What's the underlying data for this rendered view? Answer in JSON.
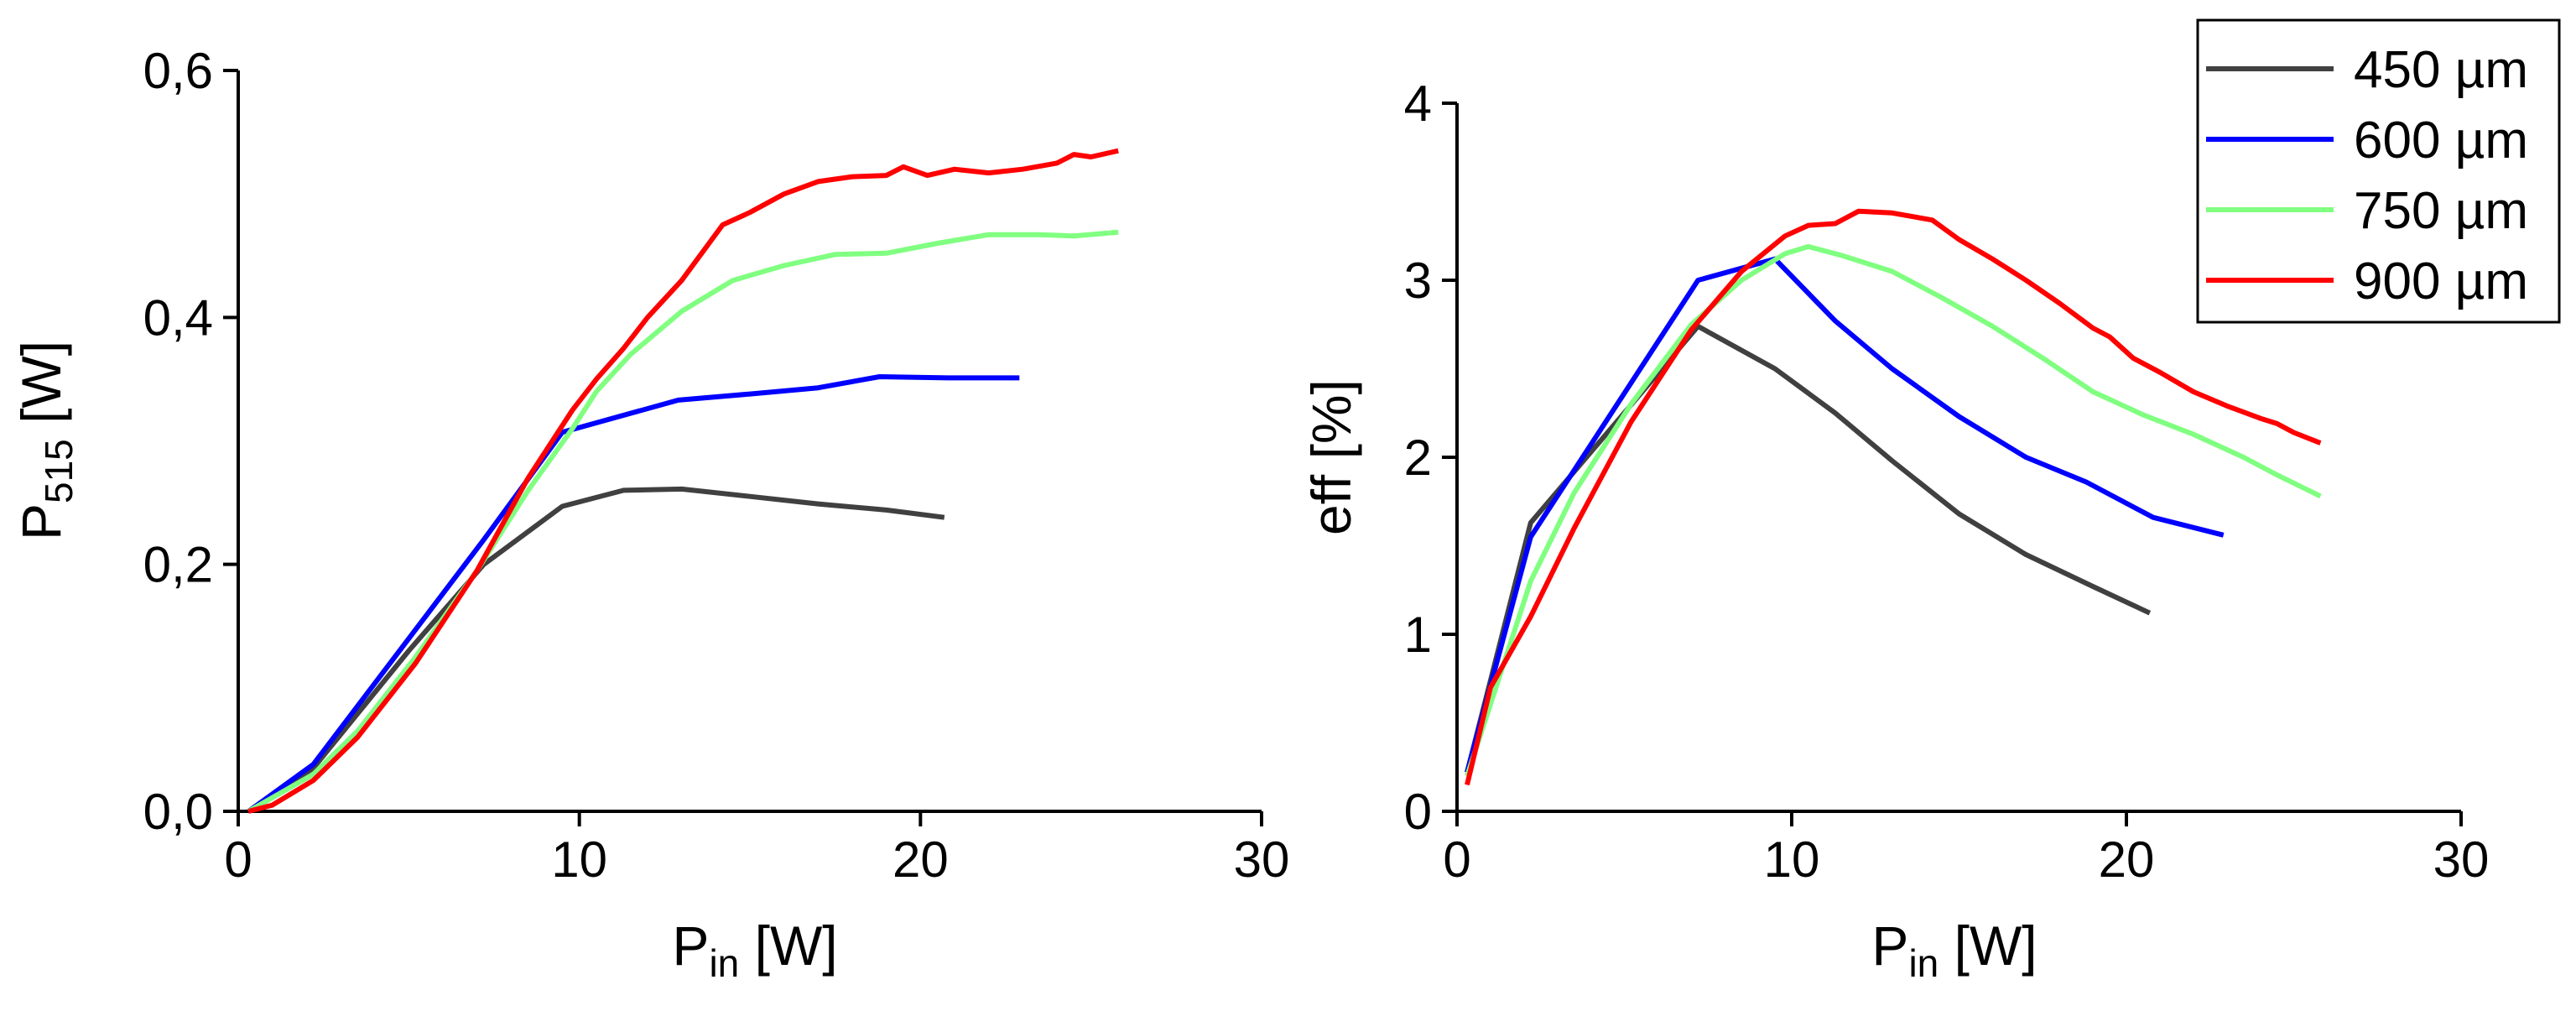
{
  "chart_data": [
    {
      "type": "line",
      "xlabel": [
        "P",
        "in",
        " [W]"
      ],
      "ylabel": [
        "P",
        "515",
        " [W]"
      ],
      "xlim": [
        0,
        30
      ],
      "xticks": [
        0,
        10,
        20,
        30
      ],
      "ylim": [
        0,
        0.6
      ],
      "yticks": [
        {
          "value": 0,
          "label": "0,0"
        },
        {
          "value": 0.2,
          "label": "0,2"
        },
        {
          "value": 0.4,
          "label": "0,4"
        },
        {
          "value": 0.6,
          "label": "0,6"
        }
      ],
      "series": [
        {
          "color": "#404040",
          "x": [
            0.3,
            2.2,
            5,
            7.2,
            9.5,
            11.3,
            13,
            15,
            17,
            19,
            20.7
          ],
          "values": [
            0,
            0.035,
            0.13,
            0.2,
            0.247,
            0.26,
            0.261,
            0.255,
            0.249,
            0.244,
            0.238
          ]
        },
        {
          "color": "#0000ff",
          "x": [
            0.3,
            2.2,
            7.2,
            9.5,
            12.9,
            15,
            17,
            18.8,
            20.8,
            22.9
          ],
          "values": [
            0,
            0.038,
            0.22,
            0.307,
            0.333,
            0.338,
            0.343,
            0.352,
            0.351,
            0.351
          ]
        },
        {
          "color": "#80ff80",
          "x": [
            0.3,
            2.2,
            3.5,
            5.2,
            7,
            8.5,
            9.8,
            10.5,
            11.5,
            13,
            14.5,
            16,
            17.5,
            19,
            20.5,
            22,
            23.5,
            24.5,
            25.8
          ],
          "values": [
            0,
            0.03,
            0.065,
            0.125,
            0.195,
            0.26,
            0.31,
            0.34,
            0.37,
            0.405,
            0.43,
            0.442,
            0.451,
            0.452,
            0.46,
            0.467,
            0.467,
            0.466,
            0.469
          ]
        },
        {
          "color": "#ff0000",
          "x": [
            0.3,
            1,
            2.2,
            3.5,
            5.2,
            7,
            8.5,
            9.8,
            10.5,
            11.3,
            12,
            13,
            14.2,
            15,
            16,
            17,
            18,
            19,
            19.5,
            20.2,
            21,
            22,
            23,
            24,
            24.5,
            25,
            25.8
          ],
          "values": [
            0,
            0.005,
            0.025,
            0.06,
            0.12,
            0.195,
            0.27,
            0.325,
            0.35,
            0.375,
            0.4,
            0.43,
            0.475,
            0.485,
            0.5,
            0.51,
            0.514,
            0.515,
            0.522,
            0.515,
            0.52,
            0.517,
            0.52,
            0.525,
            0.532,
            0.53,
            0.535
          ]
        }
      ]
    },
    {
      "type": "line",
      "xlabel": [
        "P",
        "in",
        " [W]"
      ],
      "ylabel": [
        "eff [%]"
      ],
      "xlim": [
        0,
        30
      ],
      "xticks": [
        0,
        10,
        20,
        30
      ],
      "ylim": [
        0,
        4
      ],
      "yticks": [
        0,
        1,
        2,
        3,
        4
      ],
      "legend": "upper right",
      "series": [
        {
          "name": "450 µm",
          "color": "#404040",
          "x": [
            0.3,
            2.2,
            7.2,
            9.5,
            11.3,
            13,
            15,
            17,
            19,
            20.7
          ],
          "values": [
            0.22,
            1.63,
            2.74,
            2.5,
            2.25,
            1.98,
            1.68,
            1.45,
            1.27,
            1.12
          ]
        },
        {
          "name": "600 µm",
          "color": "#0000ff",
          "x": [
            0.3,
            2.2,
            7.2,
            9.5,
            11.3,
            13,
            15,
            17,
            18.8,
            20.8,
            22.9
          ],
          "values": [
            0.22,
            1.55,
            3.0,
            3.12,
            2.77,
            2.5,
            2.23,
            2.0,
            1.86,
            1.66,
            1.56
          ]
        },
        {
          "name": "750 µm",
          "color": "#80ff80",
          "x": [
            0.3,
            2.2,
            3.5,
            5.2,
            7,
            8.5,
            9.8,
            10.5,
            11.5,
            13,
            14.5,
            16,
            17.5,
            19,
            20.5,
            22,
            23.5,
            24.5,
            25.8
          ],
          "values": [
            0.2,
            1.3,
            1.8,
            2.3,
            2.75,
            3.0,
            3.15,
            3.19,
            3.14,
            3.05,
            2.9,
            2.74,
            2.56,
            2.37,
            2.24,
            2.13,
            2.0,
            1.9,
            1.78
          ]
        },
        {
          "name": "900 µm",
          "color": "#ff0000",
          "x": [
            0.3,
            1,
            2.2,
            3.5,
            5.2,
            7,
            8.5,
            9.8,
            10.5,
            11.3,
            12,
            13,
            14.2,
            15,
            16,
            17,
            18,
            19,
            19.5,
            20.2,
            21,
            22,
            23,
            24,
            24.5,
            25,
            25.8
          ],
          "values": [
            0.15,
            0.7,
            1.1,
            1.6,
            2.2,
            2.72,
            3.05,
            3.25,
            3.31,
            3.32,
            3.39,
            3.38,
            3.34,
            3.23,
            3.12,
            3.0,
            2.87,
            2.73,
            2.68,
            2.56,
            2.48,
            2.37,
            2.29,
            2.22,
            2.19,
            2.14,
            2.08
          ]
        }
      ]
    }
  ]
}
